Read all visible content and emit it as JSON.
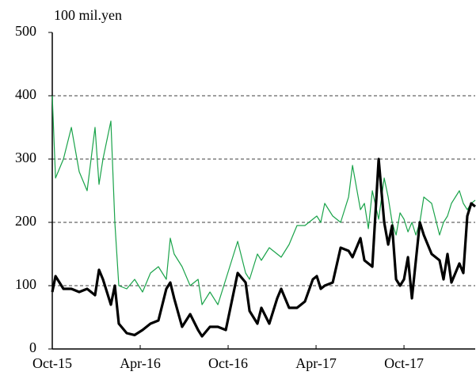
{
  "chart_data": {
    "type": "line",
    "y_axis_label": "100 mil.yen",
    "x": [
      0,
      0.22,
      0.76,
      1.3,
      1.84,
      2.38,
      2.92,
      3.19,
      3.46,
      4.0,
      4.27,
      4.54,
      5.08,
      5.62,
      6.16,
      6.7,
      7.24,
      7.78,
      8.05,
      8.32,
      8.86,
      9.41,
      9.95,
      10.22,
      10.76,
      11.3,
      11.84,
      12.38,
      12.65,
      13.19,
      13.46,
      14.0,
      14.27,
      14.81,
      15.35,
      15.62,
      16.16,
      16.7,
      17.24,
      17.78,
      18.05,
      18.32,
      18.59,
      19.14,
      19.68,
      20.22,
      20.49,
      21.03,
      21.3,
      21.57,
      21.84,
      22.27,
      22.65,
      22.92,
      23.19,
      23.46,
      23.73,
      24.0,
      24.27,
      24.54,
      24.81,
      25.08,
      25.35,
      25.89,
      26.43,
      26.7,
      26.97,
      27.24,
      27.51,
      27.78,
      28.05,
      28.32,
      28.59,
      28.86
    ],
    "series": [
      {
        "color": "#1aa34a",
        "width": 1.2,
        "values": [
          400,
          270,
          300,
          350,
          280,
          250,
          350,
          260,
          300,
          360,
          200,
          100,
          95,
          110,
          90,
          120,
          130,
          110,
          175,
          150,
          130,
          100,
          110,
          70,
          90,
          70,
          110,
          150,
          170,
          120,
          110,
          150,
          140,
          160,
          150,
          145,
          165,
          195,
          195,
          205,
          210,
          200,
          230,
          210,
          200,
          240,
          290,
          220,
          230,
          190,
          250,
          205,
          270,
          240,
          200,
          180,
          215,
          205,
          185,
          200,
          180,
          200,
          240,
          230,
          180,
          200,
          210,
          230,
          240,
          250,
          230,
          220,
          230,
          235
        ]
      },
      {
        "color": "#000000",
        "width": 3.2,
        "values": [
          90,
          115,
          95,
          95,
          90,
          95,
          85,
          125,
          110,
          70,
          100,
          40,
          25,
          22,
          30,
          40,
          45,
          95,
          105,
          80,
          35,
          55,
          30,
          20,
          35,
          35,
          30,
          90,
          120,
          105,
          60,
          40,
          65,
          40,
          80,
          95,
          65,
          65,
          75,
          110,
          115,
          95,
          100,
          105,
          160,
          155,
          145,
          175,
          140,
          135,
          130,
          300,
          200,
          165,
          195,
          110,
          100,
          110,
          145,
          80,
          140,
          200,
          180,
          150,
          140,
          110,
          150,
          105,
          120,
          135,
          120,
          210,
          230,
          225
        ]
      }
    ],
    "xlim": [
      0,
      28.86
    ],
    "xticks": [
      {
        "value": 0,
        "label": "Oct-15"
      },
      {
        "value": 6,
        "label": "Apr-16"
      },
      {
        "value": 12,
        "label": "Oct-16"
      },
      {
        "value": 18,
        "label": "Apr-17"
      },
      {
        "value": 24,
        "label": "Oct-17"
      }
    ],
    "ylim": [
      0,
      500
    ],
    "yticks": [
      0,
      100,
      200,
      300,
      400,
      500
    ],
    "grid": true
  }
}
